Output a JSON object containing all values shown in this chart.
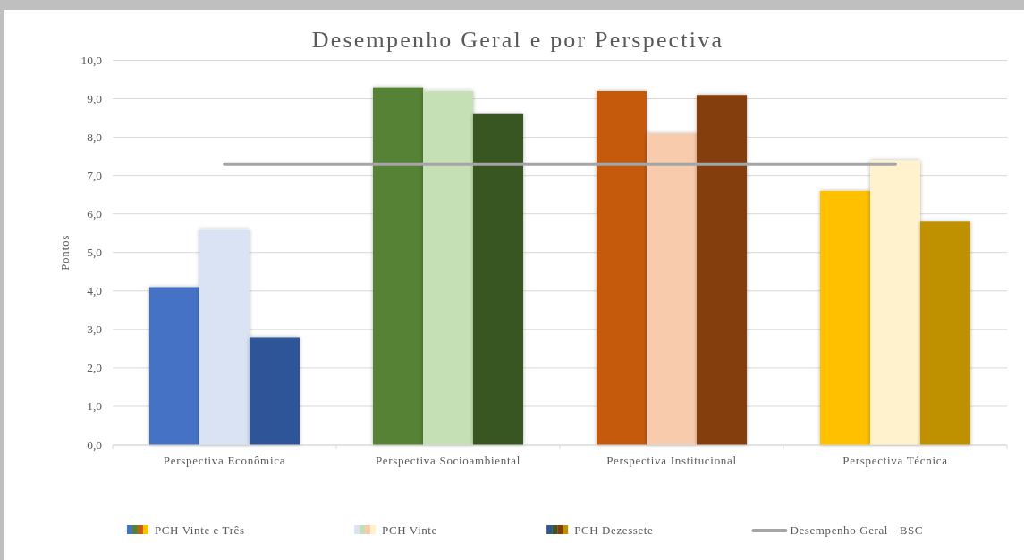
{
  "chart_data": {
    "type": "bar",
    "title": "Desempenho Geral e por Perspectiva",
    "ylabel": "Pontos",
    "categories": [
      "Perspectiva Econômica",
      "Perspectiva Socioambiental",
      "Perspectiva Institucional",
      "Perspectiva Técnica"
    ],
    "series": [
      {
        "name": "PCH Vinte e Três",
        "colors": [
          "#4472c4",
          "#548235",
          "#c55a11",
          "#ffc000"
        ],
        "values": [
          4.1,
          9.3,
          9.2,
          6.6
        ]
      },
      {
        "name": "PCH Vinte",
        "colors": [
          "#dae3f3",
          "#c5e0b4",
          "#f8cbad",
          "#fff2cc"
        ],
        "values": [
          5.6,
          9.2,
          8.1,
          7.4
        ]
      },
      {
        "name": "PCH Dezessete",
        "colors": [
          "#2f5597",
          "#385723",
          "#843c0c",
          "#bf9000"
        ],
        "values": [
          2.8,
          8.6,
          9.1,
          5.8
        ]
      },
      {
        "name": "Desempenho Geral - BSC",
        "type": "line",
        "color": "#a5a5a5",
        "values": [
          7.3,
          7.3,
          7.3,
          7.3
        ]
      }
    ],
    "ylim": [
      0,
      10
    ],
    "yticks": [
      {
        "value": 0,
        "label": "0,0"
      },
      {
        "value": 1,
        "label": "1,0"
      },
      {
        "value": 2,
        "label": "2,0"
      },
      {
        "value": 3,
        "label": "3,0"
      },
      {
        "value": 4,
        "label": "4,0"
      },
      {
        "value": 5,
        "label": "5,0"
      },
      {
        "value": 6,
        "label": "6,0"
      },
      {
        "value": 7,
        "label": "7,0"
      },
      {
        "value": 8,
        "label": "8,0"
      },
      {
        "value": 9,
        "label": "9,0"
      },
      {
        "value": 10,
        "label": "10,0"
      }
    ],
    "grid": "y",
    "legend": "bottom"
  }
}
